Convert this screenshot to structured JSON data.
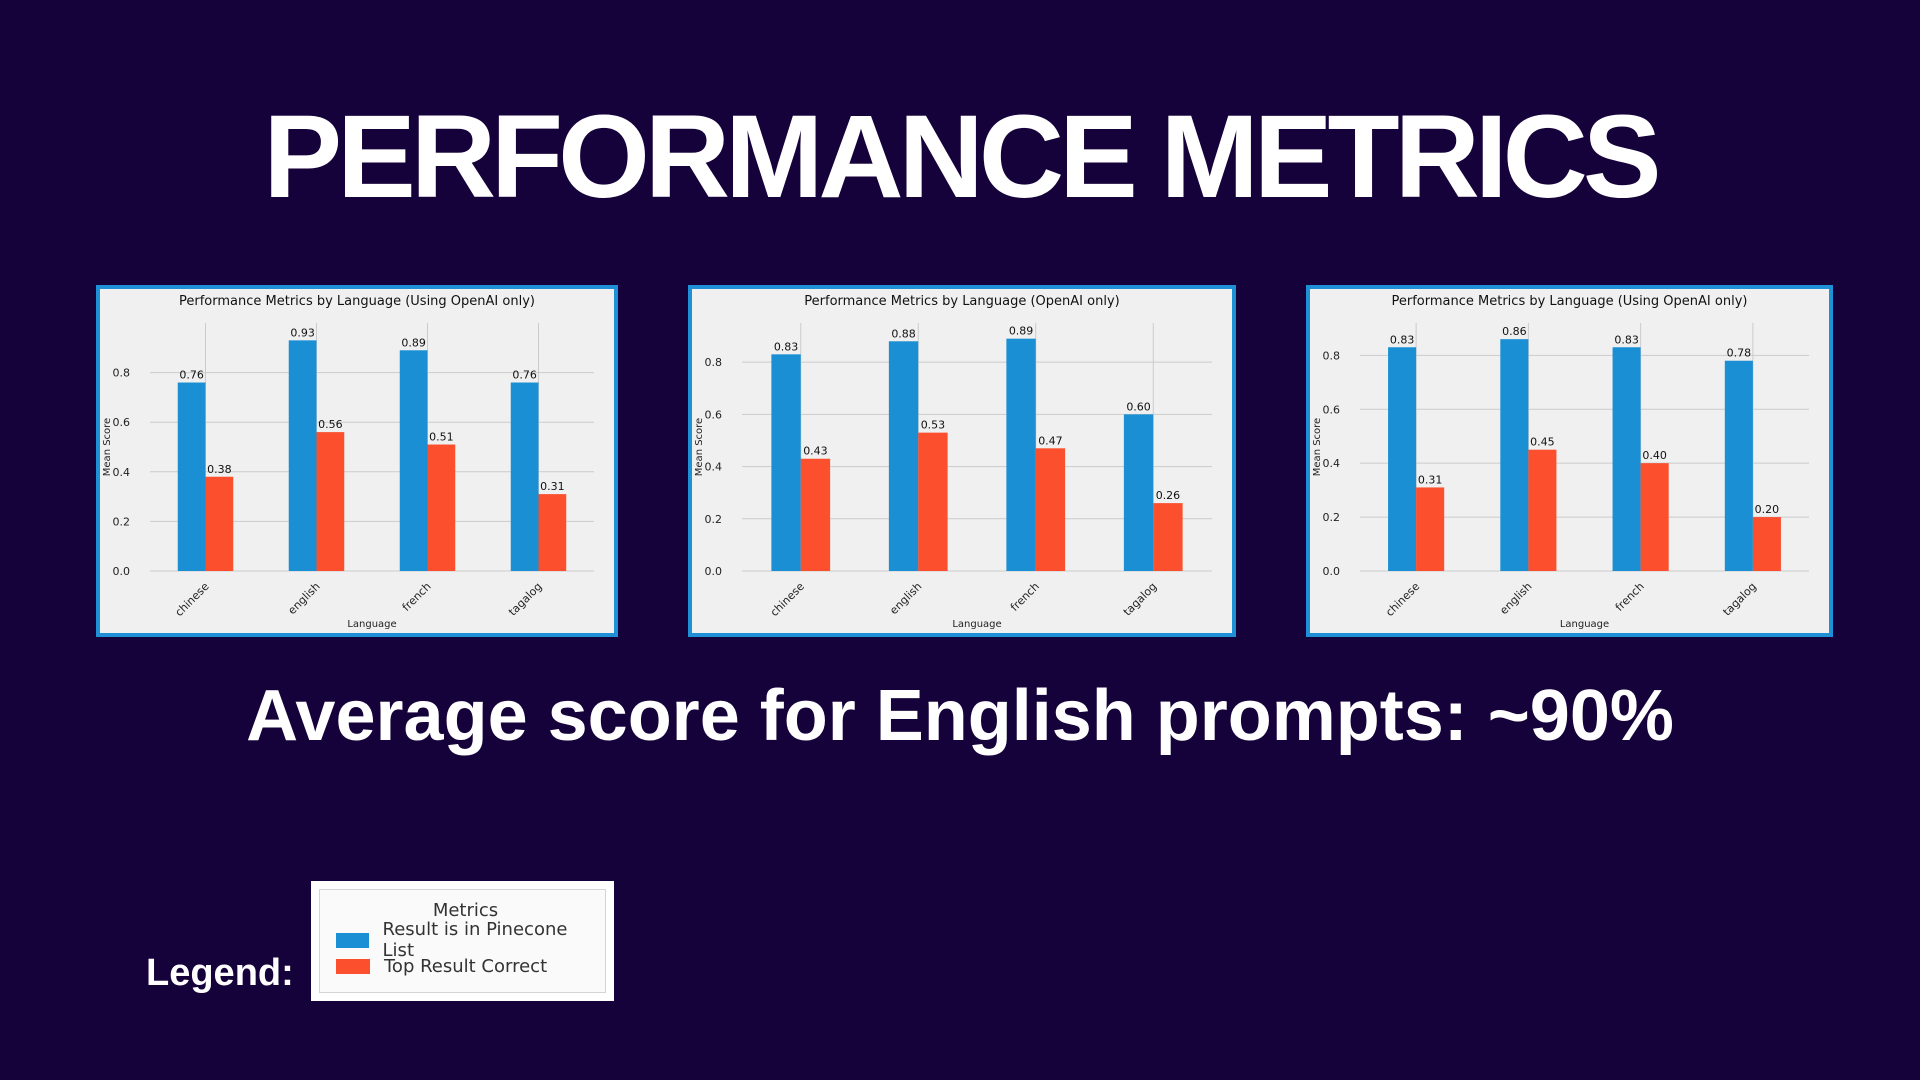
{
  "slide": {
    "title": "PERFORMANCE METRICS",
    "subtitle": "Average score for English prompts: ~90%",
    "legend_caption": "Legend:"
  },
  "legend": {
    "title": "Metrics",
    "entries": [
      {
        "label": "Result is in Pinecone List",
        "color": "#1a8fd4"
      },
      {
        "label": "Top Result Correct",
        "color": "#fb4f2e"
      }
    ]
  },
  "chart_data": [
    {
      "type": "bar",
      "title": "Performance Metrics by Language (Using OpenAI only)",
      "xlabel": "Language",
      "ylabel": "Mean Score",
      "ylim": [
        0,
        1.0
      ],
      "yticks": [
        "0.0",
        "0.2",
        "0.4",
        "0.6",
        "0.8"
      ],
      "categories": [
        "chinese",
        "english",
        "french",
        "tagalog"
      ],
      "series": [
        {
          "name": "Result is in Pinecone List",
          "color": "#1a8fd4",
          "values": [
            0.76,
            0.93,
            0.89,
            0.76
          ],
          "labels": [
            "0.76",
            "0.93",
            "0.89",
            "0.76"
          ]
        },
        {
          "name": "Top Result Correct",
          "color": "#fb4f2e",
          "values": [
            0.38,
            0.56,
            0.51,
            0.31
          ],
          "labels": [
            "0.38",
            "0.56",
            "0.51",
            "0.31"
          ]
        }
      ],
      "grid": true
    },
    {
      "type": "bar",
      "title": "Performance Metrics by Language (OpenAI only)",
      "xlabel": "Language",
      "ylabel": "Mean Score",
      "ylim": [
        0,
        0.95
      ],
      "yticks": [
        "0.0",
        "0.2",
        "0.4",
        "0.6",
        "0.8"
      ],
      "categories": [
        "chinese",
        "english",
        "french",
        "tagalog"
      ],
      "series": [
        {
          "name": "Result is in Pinecone List",
          "color": "#1a8fd4",
          "values": [
            0.83,
            0.88,
            0.89,
            0.6
          ],
          "labels": [
            "0.83",
            "0.88",
            "0.89",
            "0.60"
          ]
        },
        {
          "name": "Top Result Correct",
          "color": "#fb4f2e",
          "values": [
            0.43,
            0.53,
            0.47,
            0.26
          ],
          "labels": [
            "0.43",
            "0.53",
            "0.47",
            "0.26"
          ]
        }
      ],
      "grid": true
    },
    {
      "type": "bar",
      "title": "Performance Metrics by Language (Using OpenAI only)",
      "xlabel": "Language",
      "ylabel": "Mean Score",
      "ylim": [
        0,
        0.92
      ],
      "yticks": [
        "0.0",
        "0.2",
        "0.4",
        "0.6",
        "0.8"
      ],
      "categories": [
        "chinese",
        "english",
        "french",
        "tagalog"
      ],
      "series": [
        {
          "name": "Result is in Pinecone List",
          "color": "#1a8fd4",
          "values": [
            0.83,
            0.86,
            0.83,
            0.78
          ],
          "labels": [
            "0.83",
            "0.86",
            "0.83",
            "0.78"
          ]
        },
        {
          "name": "Top Result Correct",
          "color": "#fb4f2e",
          "values": [
            0.31,
            0.45,
            0.4,
            0.2
          ],
          "labels": [
            "0.31",
            "0.45",
            "0.40",
            "0.20"
          ]
        }
      ],
      "grid": true
    }
  ]
}
